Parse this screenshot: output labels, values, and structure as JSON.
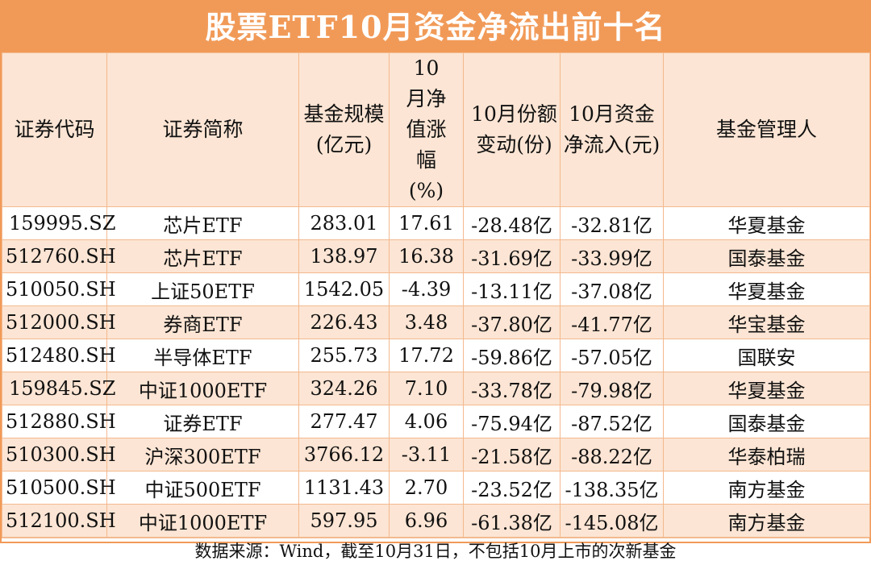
{
  "title": "股票ETF10月资金净流出前十名",
  "headers": [
    "证券代码",
    "证券简称",
    "基金规模(亿元)",
    "10月净值涨幅(%)",
    "10月份额变动(份)",
    "10月资金净流入(元)",
    "基金管理人"
  ],
  "rows": [
    [
      "159995.SZ",
      "芯片ETF",
      "283.01",
      "17.61",
      "-28.48亿",
      "-32.81亿",
      "华夏基金"
    ],
    [
      "512760.SH",
      "芯片ETF",
      "138.97",
      "16.38",
      "-31.69亿",
      "-33.99亿",
      "国泰基金"
    ],
    [
      "510050.SH",
      "上证50ETF",
      "1542.05",
      "-4.39",
      "-13.11亿",
      "-37.08亿",
      "华夏基金"
    ],
    [
      "512000.SH",
      "券商ETF",
      "226.43",
      "3.48",
      "-37.80亿",
      "-41.77亿",
      "华宝基金"
    ],
    [
      "512480.SH",
      "半导体ETF",
      "255.73",
      "17.72",
      "-59.86亿",
      "-57.05亿",
      "国联安"
    ],
    [
      "159845.SZ",
      "中证1000ETF",
      "324.26",
      "7.10",
      "-33.78亿",
      "-79.98亿",
      "华夏基金"
    ],
    [
      "512880.SH",
      "证券ETF",
      "277.47",
      "4.06",
      "-75.94亿",
      "-87.52亿",
      "国泰基金"
    ],
    [
      "510300.SH",
      "沪深300ETF",
      "3766.12",
      "-3.11",
      "-21.58亿",
      "-88.22亿",
      "华泰柏瑞"
    ],
    [
      "510500.SH",
      "中证500ETF",
      "1131.43",
      "2.70",
      "-23.52亿",
      "-138.35亿",
      "南方基金"
    ],
    [
      "512100.SH",
      "中证1000ETF",
      "597.95",
      "6.96",
      "-61.38亿",
      "-145.08亿",
      "南方基金"
    ]
  ],
  "footer": "数据来源：Wind，截至10月31日，不包括10月上市的次新基金",
  "colors": {
    "title_bg": "#f19a58",
    "row_alt": "#fce5d4",
    "border": "#f3b98e"
  }
}
